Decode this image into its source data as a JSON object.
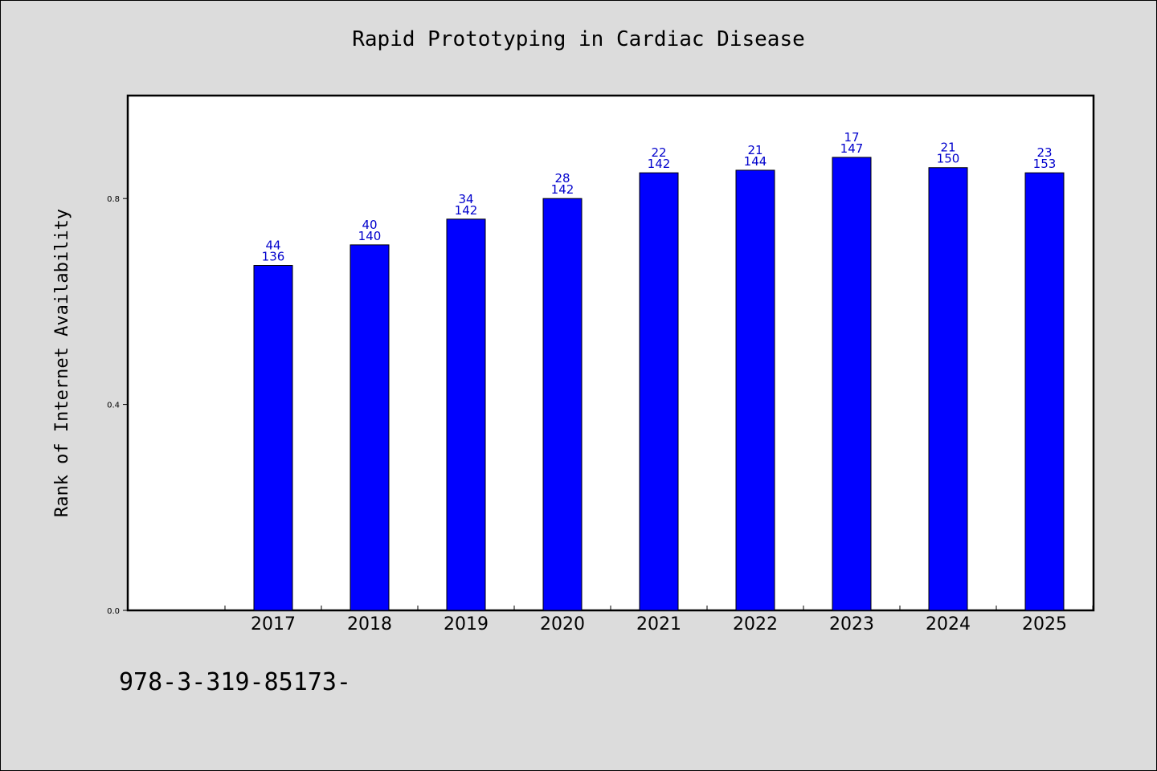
{
  "chart_data": {
    "type": "bar",
    "title": "Rapid Prototyping in Cardiac Disease",
    "xlabel": "",
    "ylabel": "Rank of Internet Availability",
    "categories": [
      "2017",
      "2018",
      "2019",
      "2020",
      "2021",
      "2022",
      "2023",
      "2024",
      "2025"
    ],
    "values": [
      0.67,
      0.71,
      0.76,
      0.8,
      0.85,
      0.855,
      0.88,
      0.86,
      0.85
    ],
    "label_top": [
      "44",
      "40",
      "34",
      "28",
      "22",
      "21",
      "17",
      "21",
      "23"
    ],
    "label_bottom": [
      "136",
      "140",
      "142",
      "142",
      "142",
      "144",
      "147",
      "150",
      "153"
    ],
    "ylim": [
      0,
      1.0
    ],
    "yticks": [
      0.0,
      0.4,
      0.8
    ],
    "ytick_labels": [
      "0.0",
      "0.4",
      "0.8"
    ],
    "grid": false,
    "bar_color": "#0000ff",
    "label_color": "#0000cc"
  },
  "footnote": "978-3-319-85173-"
}
